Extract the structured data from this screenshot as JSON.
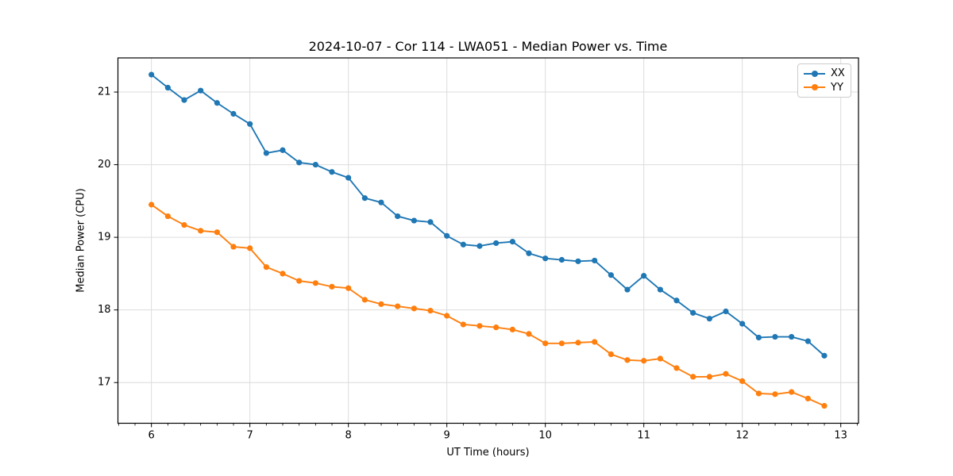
{
  "chart_data": {
    "type": "line",
    "title": "2024-10-07 - Cor 114 - LWA051 - Median Power vs. Time",
    "xlabel": "UT Time (hours)",
    "ylabel": "Median Power (CPU)",
    "xlim": [
      5.66,
      13.18
    ],
    "ylim": [
      16.44,
      21.47
    ],
    "xticks": [
      6,
      7,
      8,
      9,
      10,
      11,
      12,
      13
    ],
    "yticks": [
      17,
      18,
      19,
      20,
      21
    ],
    "x_minor_step": 0.16667,
    "grid": "on",
    "legend_position": "upper right",
    "x": [
      6,
      6.167,
      6.333,
      6.5,
      6.667,
      6.833,
      7,
      7.167,
      7.333,
      7.5,
      7.667,
      7.833,
      8,
      8.167,
      8.333,
      8.5,
      8.667,
      8.833,
      9,
      9.167,
      9.333,
      9.5,
      9.667,
      9.833,
      10,
      10.167,
      10.333,
      10.5,
      10.667,
      10.833,
      11,
      11.167,
      11.333,
      11.5,
      11.667,
      11.833,
      12,
      12.167,
      12.333,
      12.5,
      12.667,
      12.833
    ],
    "series": [
      {
        "name": "XX",
        "color": "#1f77b4",
        "marker": "circle",
        "values": [
          21.24,
          21.06,
          20.89,
          21.02,
          20.85,
          20.7,
          20.56,
          20.16,
          20.2,
          20.03,
          20.0,
          19.9,
          19.82,
          19.54,
          19.48,
          19.29,
          19.23,
          19.21,
          19.02,
          18.9,
          18.88,
          18.92,
          18.94,
          18.78,
          18.71,
          18.69,
          18.67,
          18.68,
          18.48,
          18.28,
          18.47,
          18.28,
          18.13,
          17.96,
          17.88,
          17.98,
          17.81,
          17.62,
          17.63,
          17.63,
          17.57,
          17.37
        ]
      },
      {
        "name": "YY",
        "color": "#ff7f0e",
        "marker": "circle",
        "values": [
          19.45,
          19.29,
          19.17,
          19.09,
          19.07,
          18.87,
          18.85,
          18.59,
          18.5,
          18.4,
          18.37,
          18.32,
          18.3,
          18.14,
          18.08,
          18.05,
          18.02,
          17.99,
          17.92,
          17.8,
          17.78,
          17.76,
          17.73,
          17.67,
          17.54,
          17.54,
          17.55,
          17.56,
          17.39,
          17.31,
          17.3,
          17.33,
          17.2,
          17.08,
          17.08,
          17.12,
          17.02,
          16.85,
          16.84,
          16.87,
          16.78,
          16.68
        ]
      }
    ]
  },
  "colors": {
    "background": "#ffffff",
    "grid": "#dcdcdc",
    "spine": "#000000",
    "tick_label": "#000000"
  }
}
